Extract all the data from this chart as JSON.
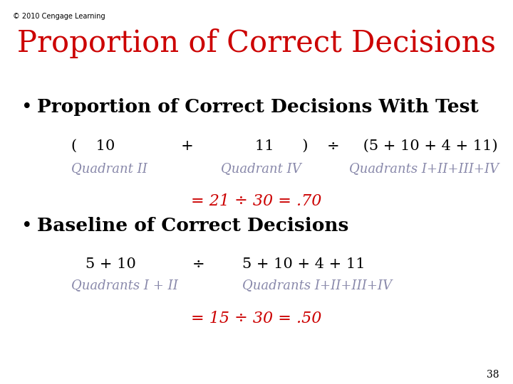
{
  "background_color": "#ffffff",
  "copyright_text": "© 2010 Cengage Learning",
  "copyright_fontsize": 7,
  "copyright_color": "#000000",
  "title": "Proportion of Correct Decisions",
  "title_color": "#cc0000",
  "title_fontsize": 30,
  "bullet1_text": "Proportion of Correct Decisions With Test",
  "bullet1_fontsize": 19,
  "bullet1_color": "#000000",
  "eq1_line1": "(    10              +             11      )    ÷     (5 + 10 + 4 + 11)",
  "eq1_line2_a": "Quadrant II",
  "eq1_line2_b": "Quadrant IV",
  "eq1_line2_c": "Quadrants I+II+III+IV",
  "result1": "= 21 ÷ 30 = .70",
  "result1_color": "#cc0000",
  "bullet2_text": "Baseline of Correct Decisions",
  "bullet2_fontsize": 19,
  "bullet2_color": "#000000",
  "eq2_line1_a": "5 + 10",
  "eq2_line1_b": "÷",
  "eq2_line1_c": "5 + 10 + 4 + 11",
  "eq2_line2_a": "Quadrants I + II",
  "eq2_line2_b": "Quadrants I+II+III+IV",
  "result2": "= 15 ÷ 30 = .50",
  "result2_color": "#cc0000",
  "page_number": "38",
  "page_fontsize": 10,
  "eq_fontsize": 15,
  "italic_fontsize": 13,
  "result_fontsize": 16,
  "italic_color": "#8888aa"
}
